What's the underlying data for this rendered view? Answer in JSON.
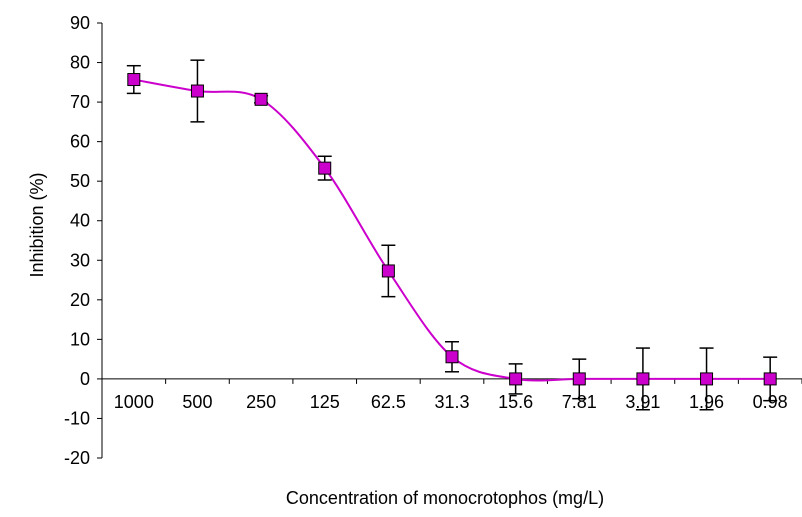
{
  "chart_data": {
    "type": "line",
    "title": "",
    "xlabel": "Concentration of monocrotophos (mg/L)",
    "ylabel": "Inhibition (%)",
    "ylim": [
      -20,
      90
    ],
    "ytick_step": 10,
    "grid": false,
    "legend": "none",
    "categories": [
      "1000",
      "500",
      "250",
      "125",
      "62.5",
      "31.3",
      "15.6",
      "7.81",
      "3.91",
      "1.96",
      "0.98"
    ],
    "series": [
      {
        "values": [
          75.7,
          72.8,
          70.7,
          53.3,
          27.3,
          5.6,
          0,
          0,
          0,
          0,
          0
        ],
        "error": [
          3.5,
          7.8,
          0.9,
          3.0,
          6.5,
          3.8,
          3.8,
          5.0,
          7.8,
          7.8,
          5.5
        ],
        "line_color": "#cc00cc",
        "marker_color": "#cc00cc",
        "marker": "square"
      }
    ]
  }
}
